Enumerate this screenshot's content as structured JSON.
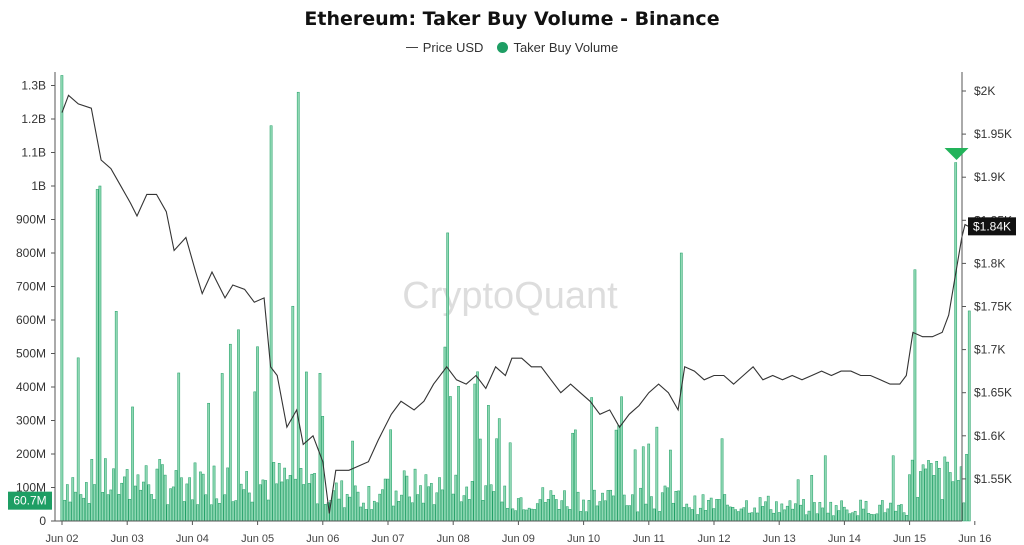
{
  "chart_data": {
    "type": "bar+line",
    "title": "Ethereum: Taker Buy Volume - Binance",
    "watermark": "CryptoQuant",
    "legend": [
      {
        "label": "Price USD",
        "kind": "line",
        "color": "#444444"
      },
      {
        "label": "Taker Buy Volume",
        "kind": "dot",
        "color": "#1e9e64"
      }
    ],
    "x_ticks": [
      "Jun 02",
      "Jun 03",
      "Jun 04",
      "Jun 05",
      "Jun 06",
      "Jun 07",
      "Jun 08",
      "Jun 09",
      "Jun 10",
      "Jun 11",
      "Jun 12",
      "Jun 13",
      "Jun 14",
      "Jun 15",
      "Jun 16"
    ],
    "x_range_days": [
      0,
      14
    ],
    "y_left": {
      "ticks": [
        {
          "value": 0,
          "label": "0"
        },
        {
          "value": 100000000,
          "label": "100M"
        },
        {
          "value": 200000000,
          "label": "200M"
        },
        {
          "value": 300000000,
          "label": "300M"
        },
        {
          "value": 400000000,
          "label": "400M"
        },
        {
          "value": 500000000,
          "label": "500M"
        },
        {
          "value": 600000000,
          "label": "600M"
        },
        {
          "value": 700000000,
          "label": "700M"
        },
        {
          "value": 800000000,
          "label": "800M"
        },
        {
          "value": 900000000,
          "label": "900M"
        },
        {
          "value": 1000000000,
          "label": "1B"
        },
        {
          "value": 1100000000,
          "label": "1.1B"
        },
        {
          "value": 1200000000,
          "label": "1.2B"
        },
        {
          "value": 1300000000,
          "label": "1.3B"
        }
      ],
      "range": [
        0,
        1300000000
      ]
    },
    "y_right": {
      "ticks": [
        {
          "value": 1550,
          "label": "$1.55K"
        },
        {
          "value": 1600,
          "label": "$1.6K"
        },
        {
          "value": 1650,
          "label": "$1.65K"
        },
        {
          "value": 1700,
          "label": "$1.7K"
        },
        {
          "value": 1750,
          "label": "$1.75K"
        },
        {
          "value": 1800,
          "label": "$1.8K"
        },
        {
          "value": 1850,
          "label": "$1.85K"
        },
        {
          "value": 1900,
          "label": "$1.9K"
        },
        {
          "value": 1950,
          "label": "$1.95K"
        },
        {
          "value": 2000,
          "label": "$2K"
        }
      ],
      "range": [
        1500,
        2000
      ]
    },
    "current_volume_label": "60.7M",
    "current_price_label": "$1.84K",
    "volume_color": "#1e9e64",
    "volume_fill": "#8fd8b4",
    "price_color": "#333333",
    "spikes": [
      {
        "day": 0.02,
        "value": 1330000000
      },
      {
        "day": 0.55,
        "value": 990000000
      },
      {
        "day": 0.57,
        "value": 1000000000
      },
      {
        "day": 3.22,
        "value": 1180000000
      },
      {
        "day": 3.62,
        "value": 1280000000
      },
      {
        "day": 5.9,
        "value": 860000000
      },
      {
        "day": 9.5,
        "value": 800000000
      },
      {
        "day": 13.08,
        "value": 750000000
      },
      {
        "day": 13.72,
        "value": 1070000000
      }
    ],
    "price_points": [
      {
        "day": 0.0,
        "price": 1975
      },
      {
        "day": 0.1,
        "price": 1995
      },
      {
        "day": 0.25,
        "price": 1985
      },
      {
        "day": 0.45,
        "price": 1980
      },
      {
        "day": 0.6,
        "price": 1920
      },
      {
        "day": 0.75,
        "price": 1910
      },
      {
        "day": 0.9,
        "price": 1890
      },
      {
        "day": 1.05,
        "price": 1870
      },
      {
        "day": 1.15,
        "price": 1855
      },
      {
        "day": 1.3,
        "price": 1880
      },
      {
        "day": 1.45,
        "price": 1880
      },
      {
        "day": 1.6,
        "price": 1860
      },
      {
        "day": 1.72,
        "price": 1815
      },
      {
        "day": 1.9,
        "price": 1830
      },
      {
        "day": 2.05,
        "price": 1790
      },
      {
        "day": 2.15,
        "price": 1765
      },
      {
        "day": 2.3,
        "price": 1790
      },
      {
        "day": 2.5,
        "price": 1760
      },
      {
        "day": 2.62,
        "price": 1775
      },
      {
        "day": 2.8,
        "price": 1770
      },
      {
        "day": 2.95,
        "price": 1755
      },
      {
        "day": 3.1,
        "price": 1760
      },
      {
        "day": 3.2,
        "price": 1680
      },
      {
        "day": 3.3,
        "price": 1670
      },
      {
        "day": 3.45,
        "price": 1610
      },
      {
        "day": 3.6,
        "price": 1630
      },
      {
        "day": 3.7,
        "price": 1590
      },
      {
        "day": 3.85,
        "price": 1600
      },
      {
        "day": 4.0,
        "price": 1570
      },
      {
        "day": 4.1,
        "price": 1510
      },
      {
        "day": 4.2,
        "price": 1560
      },
      {
        "day": 4.4,
        "price": 1560
      },
      {
        "day": 4.55,
        "price": 1565
      },
      {
        "day": 4.7,
        "price": 1570
      },
      {
        "day": 4.85,
        "price": 1595
      },
      {
        "day": 5.05,
        "price": 1625
      },
      {
        "day": 5.2,
        "price": 1640
      },
      {
        "day": 5.4,
        "price": 1630
      },
      {
        "day": 5.55,
        "price": 1640
      },
      {
        "day": 5.7,
        "price": 1660
      },
      {
        "day": 5.9,
        "price": 1680
      },
      {
        "day": 6.05,
        "price": 1665
      },
      {
        "day": 6.2,
        "price": 1660
      },
      {
        "day": 6.35,
        "price": 1670
      },
      {
        "day": 6.5,
        "price": 1655
      },
      {
        "day": 6.65,
        "price": 1680
      },
      {
        "day": 6.8,
        "price": 1670
      },
      {
        "day": 6.9,
        "price": 1690
      },
      {
        "day": 7.05,
        "price": 1690
      },
      {
        "day": 7.2,
        "price": 1680
      },
      {
        "day": 7.35,
        "price": 1680
      },
      {
        "day": 7.5,
        "price": 1665
      },
      {
        "day": 7.65,
        "price": 1650
      },
      {
        "day": 7.8,
        "price": 1660
      },
      {
        "day": 7.95,
        "price": 1650
      },
      {
        "day": 8.1,
        "price": 1640
      },
      {
        "day": 8.25,
        "price": 1625
      },
      {
        "day": 8.4,
        "price": 1630
      },
      {
        "day": 8.55,
        "price": 1610
      },
      {
        "day": 8.7,
        "price": 1625
      },
      {
        "day": 8.85,
        "price": 1635
      },
      {
        "day": 9.0,
        "price": 1650
      },
      {
        "day": 9.15,
        "price": 1660
      },
      {
        "day": 9.3,
        "price": 1650
      },
      {
        "day": 9.45,
        "price": 1630
      },
      {
        "day": 9.55,
        "price": 1680
      },
      {
        "day": 9.7,
        "price": 1675
      },
      {
        "day": 9.85,
        "price": 1665
      },
      {
        "day": 10.0,
        "price": 1670
      },
      {
        "day": 10.15,
        "price": 1670
      },
      {
        "day": 10.3,
        "price": 1660
      },
      {
        "day": 10.45,
        "price": 1670
      },
      {
        "day": 10.6,
        "price": 1680
      },
      {
        "day": 10.75,
        "price": 1665
      },
      {
        "day": 10.9,
        "price": 1670
      },
      {
        "day": 11.05,
        "price": 1665
      },
      {
        "day": 11.2,
        "price": 1670
      },
      {
        "day": 11.35,
        "price": 1665
      },
      {
        "day": 11.5,
        "price": 1670
      },
      {
        "day": 11.65,
        "price": 1675
      },
      {
        "day": 11.8,
        "price": 1670
      },
      {
        "day": 11.95,
        "price": 1675
      },
      {
        "day": 12.1,
        "price": 1675
      },
      {
        "day": 12.25,
        "price": 1670
      },
      {
        "day": 12.4,
        "price": 1670
      },
      {
        "day": 12.55,
        "price": 1665
      },
      {
        "day": 12.7,
        "price": 1660
      },
      {
        "day": 12.85,
        "price": 1660
      },
      {
        "day": 12.95,
        "price": 1670
      },
      {
        "day": 13.05,
        "price": 1720
      },
      {
        "day": 13.2,
        "price": 1715
      },
      {
        "day": 13.35,
        "price": 1715
      },
      {
        "day": 13.5,
        "price": 1720
      },
      {
        "day": 13.6,
        "price": 1740
      },
      {
        "day": 13.7,
        "price": 1785
      },
      {
        "day": 13.8,
        "price": 1830
      },
      {
        "day": 13.85,
        "price": 1845
      },
      {
        "day": 13.9,
        "price": 1843
      }
    ]
  }
}
